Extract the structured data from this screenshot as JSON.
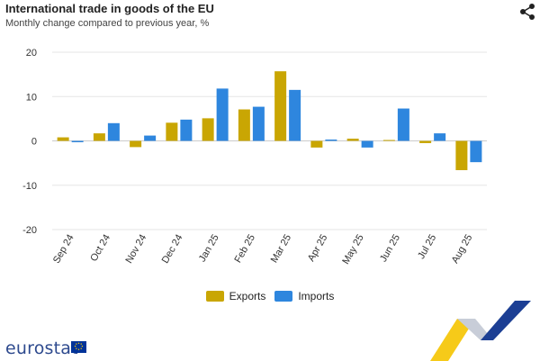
{
  "header": {
    "title": "International trade in goods of the EU",
    "subtitle": "Monthly change compared to previous year, %",
    "share_icon": "share-icon"
  },
  "chart_data": {
    "type": "bar",
    "categories": [
      "Sep 24",
      "Oct 24",
      "Nov 24",
      "Dec 24",
      "Jan 25",
      "Feb 25",
      "Mar 25",
      "Apr 25",
      "May 25",
      "Jun 25",
      "Jul 25",
      "Aug 25"
    ],
    "series": [
      {
        "name": "Exports",
        "color": "#c9a603",
        "values": [
          0.8,
          1.7,
          -1.4,
          4.1,
          5.1,
          7.1,
          15.7,
          -1.5,
          0.5,
          0.2,
          -0.5,
          -6.6
        ]
      },
      {
        "name": "Imports",
        "color": "#2e86de",
        "values": [
          -0.3,
          4.0,
          1.2,
          4.8,
          11.8,
          7.7,
          11.5,
          0.3,
          -1.5,
          7.3,
          1.7,
          -4.8
        ]
      }
    ],
    "title": "International trade in goods of the EU",
    "xlabel": "",
    "ylabel": "",
    "ylim": [
      -20,
      20
    ],
    "yticks": [
      20,
      10,
      0,
      -10,
      -20
    ],
    "grid": true,
    "legend": "bottom-center"
  },
  "brand": {
    "name": "eurostat",
    "flag_icon": "eu-flag-icon",
    "colors": {
      "text": "#2e4a8e",
      "flag": "#003399",
      "stars": "#ffcc00",
      "ribbon_blue": "#1c3f94",
      "ribbon_yellow": "#f5c400"
    }
  }
}
